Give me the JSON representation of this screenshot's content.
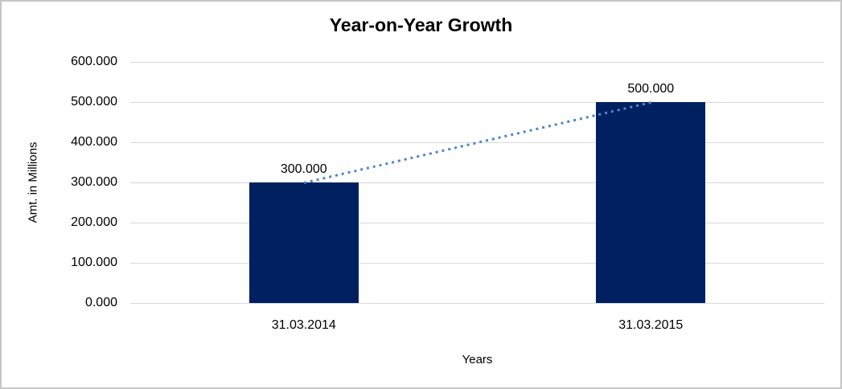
{
  "chart_data": {
    "type": "bar",
    "title": "Year-on-Year Growth",
    "xlabel": "Years",
    "ylabel": "Amt. in Millions",
    "categories": [
      "31.03.2014",
      "31.03.2015"
    ],
    "values": [
      300,
      500
    ],
    "value_labels": [
      "300.000",
      "500.000"
    ],
    "y_tick_values": [
      0,
      100,
      200,
      300,
      400,
      500,
      600
    ],
    "y_tick_labels": [
      "0.000",
      "100.000",
      "200.000",
      "300.000",
      "400.000",
      "500.000",
      "600.000"
    ],
    "ylim": [
      0,
      600
    ],
    "grid": "horizontal",
    "legend": "none",
    "trendline": {
      "style": "dotted",
      "from_category_index": 0,
      "from_value": 300,
      "to_category_index": 1,
      "to_value": 500
    },
    "colors": {
      "bar": "#002060",
      "trendline": "#4e86c8",
      "gridline": "#d9d9d9",
      "text": "#000000",
      "frame_border": "#c6c6c6",
      "background": "#ffffff"
    }
  }
}
